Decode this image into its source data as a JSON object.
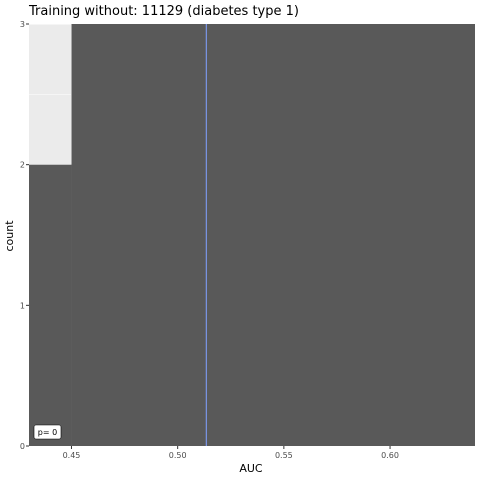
{
  "chart_data": {
    "type": "bar",
    "title": "Training without: 11129 (diabetes type 1)",
    "xlabel": "AUC",
    "ylabel": "count",
    "xlim": [
      0.43,
      0.64
    ],
    "ylim": [
      0,
      3
    ],
    "x_ticks": [
      0.45,
      0.5,
      0.55,
      0.6
    ],
    "x_tick_labels": [
      "0.45",
      "0.50",
      "0.55",
      "0.60"
    ],
    "y_ticks": [
      0,
      1,
      2,
      3
    ],
    "y_tick_labels": [
      "0",
      "1",
      "2",
      "3"
    ],
    "bars": [
      {
        "xmin": 0.43,
        "xmax": 0.45,
        "count": 2
      },
      {
        "xmin": 0.45,
        "xmax": 0.64,
        "count": 3
      }
    ],
    "vline": {
      "x": 0.5135,
      "color": "#7b96e8"
    },
    "annotation": "p= 0",
    "colors": {
      "bar_fill": "#595959",
      "panel_bg": "#ebebeb",
      "grid": "#ffffff"
    },
    "grid": true
  }
}
